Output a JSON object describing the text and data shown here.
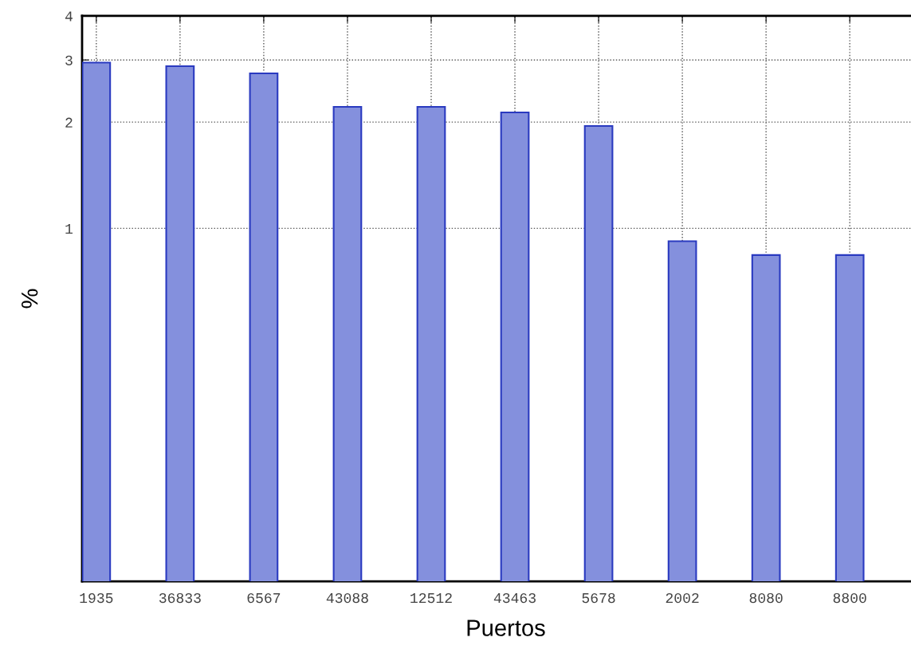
{
  "chart_data": {
    "type": "bar",
    "xlabel": "Puertos",
    "ylabel": "%",
    "categories": [
      "1935",
      "36833",
      "6567",
      "43088",
      "12512",
      "43463",
      "5678",
      "2002",
      "8080",
      "8800"
    ],
    "values": [
      2.95,
      2.88,
      2.75,
      2.21,
      2.21,
      2.13,
      1.95,
      0.92,
      0.84,
      0.84
    ],
    "color": "#8490dd",
    "log": true,
    "ylim": [
      0.1,
      4
    ],
    "yticks": [
      1,
      2,
      3,
      4
    ],
    "grid": true
  }
}
